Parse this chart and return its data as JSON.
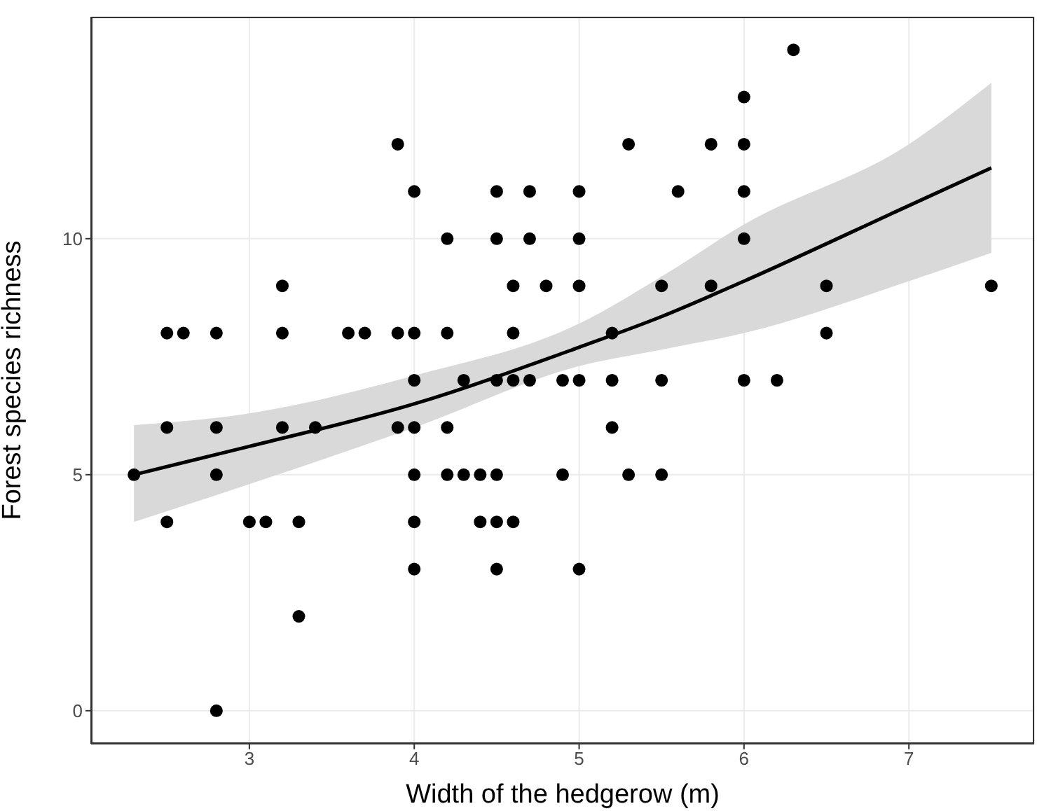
{
  "chart_data": {
    "type": "scatter",
    "xlabel": "Width of the hedgerow (m)",
    "ylabel": "Forest species richness",
    "xlim": [
      2.04,
      7.76
    ],
    "ylim": [
      -0.7,
      14.7
    ],
    "xticks": [
      3,
      4,
      5,
      6,
      7
    ],
    "yticks": [
      0,
      5,
      10
    ],
    "grid": true,
    "marker": "circle",
    "series": [
      {
        "color": "#000000",
        "x": [
          3.9,
          4.0,
          4.5,
          4.7,
          4.2,
          4.5,
          4.7,
          3.2,
          4.6,
          4.8,
          2.5,
          2.6,
          2.8,
          3.2,
          3.6,
          3.7,
          3.9,
          4.0,
          4.2,
          4.6,
          4.0,
          4.3,
          4.5,
          4.6,
          4.7,
          6.3,
          6.0,
          5.3,
          5.8,
          6.0,
          5.0,
          5.6,
          6.0,
          5.0,
          6.0,
          5.0,
          5.5,
          5.8,
          6.5,
          7.5,
          5.2,
          6.5,
          4.9,
          5.0,
          5.2,
          5.5,
          6.0,
          6.2,
          2.5,
          2.8,
          3.2,
          3.4,
          3.9,
          4.0,
          4.2,
          5.2,
          2.3,
          2.8,
          4.0,
          4.2,
          4.3,
          4.4,
          4.5,
          4.9,
          5.3,
          5.5,
          2.5,
          3.0,
          3.1,
          3.3,
          4.0,
          4.4,
          4.5,
          4.6,
          4.0,
          4.5,
          5.0,
          3.3,
          2.8
        ],
        "values": [
          12,
          11,
          11,
          11,
          10,
          10,
          10,
          9,
          9,
          9,
          8,
          8,
          8,
          8,
          8,
          8,
          8,
          8,
          8,
          8,
          7,
          7,
          7,
          7,
          7,
          14,
          13,
          12,
          12,
          12,
          11,
          11,
          11,
          10,
          10,
          9,
          9,
          9,
          9,
          9,
          8,
          8,
          7,
          7,
          7,
          7,
          7,
          7,
          6,
          6,
          6,
          6,
          6,
          6,
          6,
          6,
          5,
          5,
          5,
          5,
          5,
          5,
          5,
          5,
          5,
          5,
          4,
          4,
          4,
          4,
          4,
          4,
          4,
          4,
          3,
          3,
          3,
          2,
          0
        ]
      },
      {
        "type": "line",
        "color": "#000000",
        "line_style": "solid",
        "marker": "none",
        "x": [
          2.3,
          3,
          4,
          5,
          5.5,
          6,
          7,
          7.5
        ],
        "values": [
          5.0,
          5.6,
          6.5,
          7.7,
          8.35,
          9.1,
          10.7,
          11.5
        ],
        "lower": [
          4.0,
          4.8,
          6.0,
          7.3,
          7.65,
          8.0,
          9.1,
          9.7
        ],
        "upper": [
          6.05,
          6.3,
          7.1,
          8.2,
          9.2,
          10.3,
          12.0,
          13.3
        ]
      }
    ]
  }
}
